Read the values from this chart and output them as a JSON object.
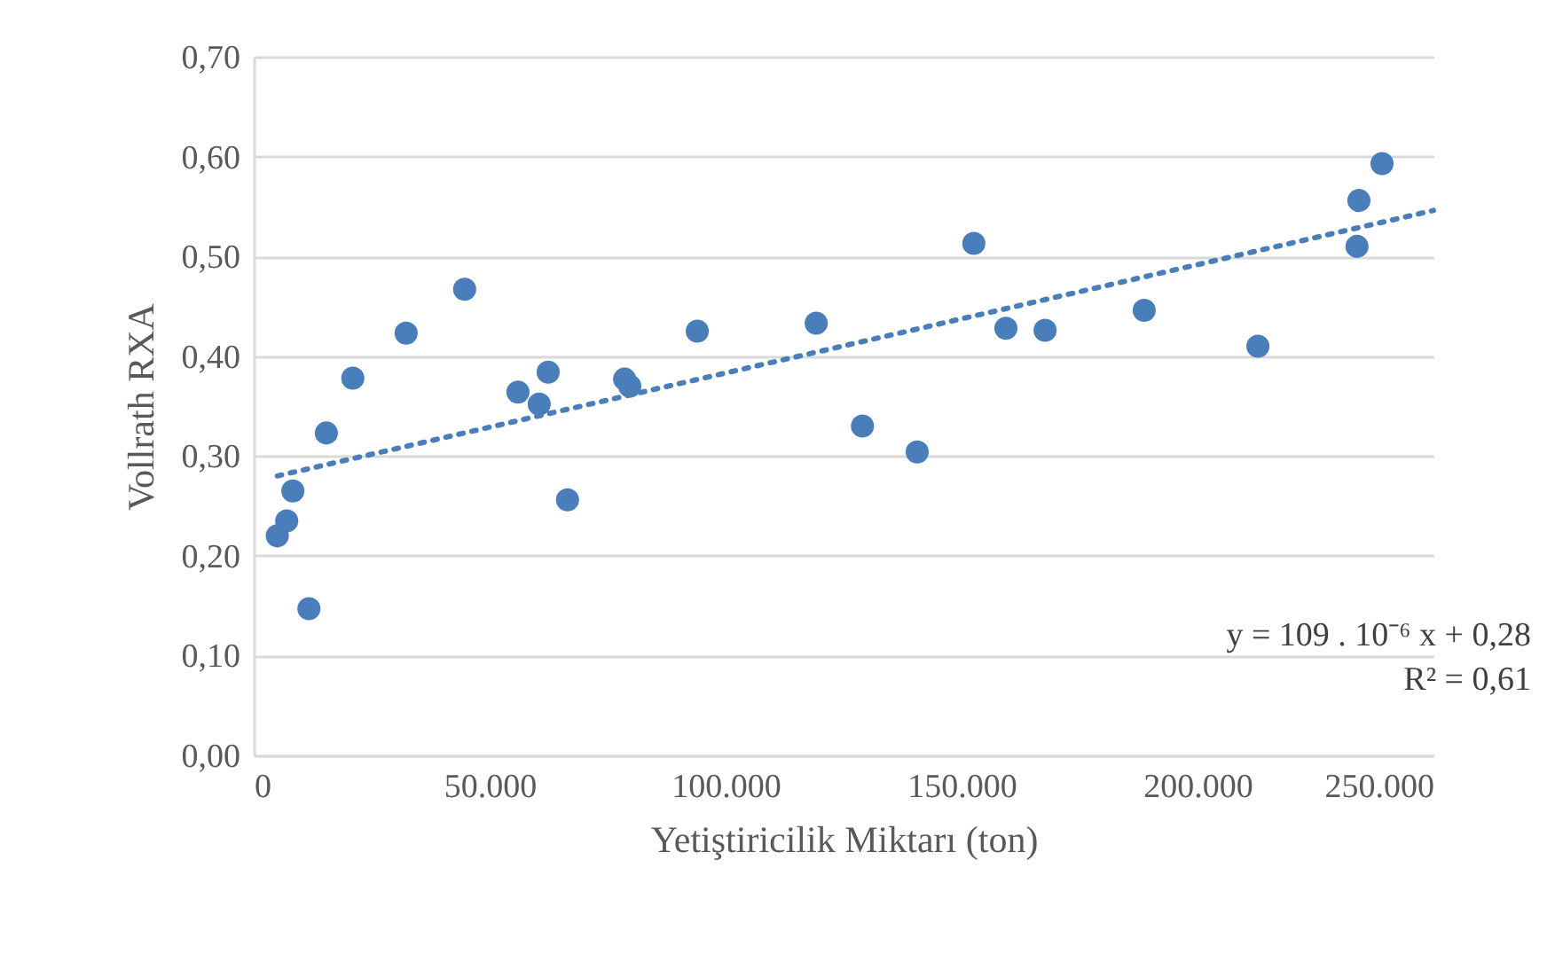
{
  "chart_data": {
    "type": "scatter",
    "xlabel": "Yetiştiricilik Miktarı (ton)",
    "ylabel": "Vollrath RXA",
    "xlim": [
      0,
      250000
    ],
    "ylim": [
      0,
      0.7
    ],
    "xticks": [
      0,
      {
        "value": 50000,
        "label": "50.000"
      },
      {
        "value": 100000,
        "label": "100.000"
      },
      {
        "value": 150000,
        "label": "150.000"
      },
      {
        "value": 200000,
        "label": "200.000"
      },
      {
        "value": 250000,
        "label": "250.000"
      }
    ],
    "yticks": [
      {
        "value": 0,
        "label": "0,00"
      },
      {
        "value": 0.1,
        "label": "0,10"
      },
      {
        "value": 0.2,
        "label": "0,20"
      },
      {
        "value": 0.3,
        "label": "0,30"
      },
      {
        "value": 0.4,
        "label": "0,40"
      },
      {
        "value": 0.5,
        "label": "0,50"
      },
      {
        "value": 0.6,
        "label": "0,60"
      },
      {
        "value": 0.7,
        "label": "0,70"
      }
    ],
    "grid": "y",
    "marker": "circle",
    "series": [
      {
        "color": "#4a7ebb",
        "x": [
          5000,
          7000,
          8300,
          11700,
          15400,
          21000,
          32300,
          44700,
          56000,
          60500,
          62400,
          66500,
          78600,
          79700,
          94000,
          119200,
          129000,
          140600,
          152600,
          159400,
          167700,
          188700,
          212800,
          233800,
          234200,
          239100
        ],
        "values": [
          0.22,
          0.235,
          0.265,
          0.147,
          0.323,
          0.378,
          0.423,
          0.467,
          0.364,
          0.352,
          0.384,
          0.256,
          0.377,
          0.37,
          0.425,
          0.433,
          0.33,
          0.304,
          0.513,
          0.428,
          0.426,
          0.446,
          0.41,
          0.51,
          0.556,
          0.593
        ]
      },
      {
        "type": "line",
        "color": "#4a7ebb",
        "line_style": "dotted",
        "marker": "none",
        "x": [
          5000,
          250000
        ],
        "values": [
          0.28,
          0.546
        ]
      }
    ],
    "annotations": [
      "y = 109 . 10⁻⁶ x + 0,28",
      "R² = 0,61"
    ]
  }
}
